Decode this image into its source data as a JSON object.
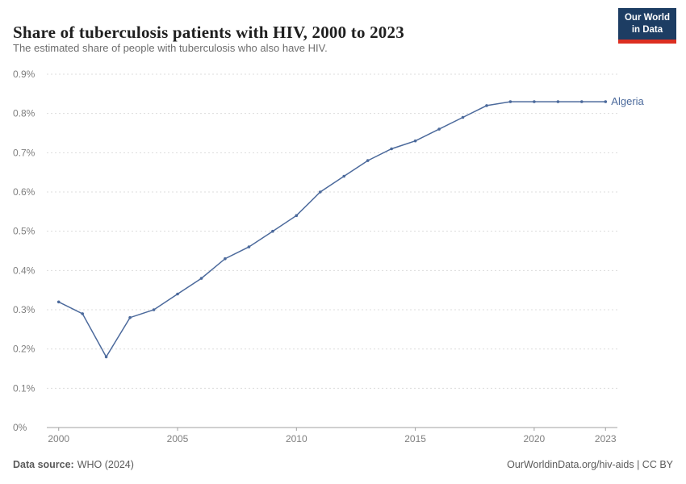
{
  "header": {
    "title": "Share of tuberculosis patients with HIV, 2000 to 2023",
    "subtitle": "The estimated share of people with tuberculosis who also have HIV.",
    "logo": {
      "line1": "Our World",
      "line2": "in Data"
    }
  },
  "chart_data": {
    "type": "line",
    "title": "Share of tuberculosis patients with HIV, 2000 to 2023",
    "xlabel": "",
    "ylabel": "",
    "xlim": [
      1999.5,
      2023.5
    ],
    "ylim": [
      0,
      0.9
    ],
    "grid": "horizontal-dashed",
    "legend_position": "end-of-line-label",
    "x_ticks": [
      2000,
      2005,
      2010,
      2015,
      2020,
      2023
    ],
    "y_ticks": [
      {
        "value": 0,
        "label": "0%"
      },
      {
        "value": 0.1,
        "label": "0.1%"
      },
      {
        "value": 0.2,
        "label": "0.2%"
      },
      {
        "value": 0.3,
        "label": "0.3%"
      },
      {
        "value": 0.4,
        "label": "0.4%"
      },
      {
        "value": 0.5,
        "label": "0.5%"
      },
      {
        "value": 0.6,
        "label": "0.6%"
      },
      {
        "value": 0.7,
        "label": "0.7%"
      },
      {
        "value": 0.8,
        "label": "0.8%"
      },
      {
        "value": 0.9,
        "label": "0.9%"
      }
    ],
    "series": [
      {
        "name": "Algeria",
        "color": "#4c6a9c",
        "x": [
          2000,
          2001,
          2002,
          2003,
          2004,
          2005,
          2006,
          2007,
          2008,
          2009,
          2010,
          2011,
          2012,
          2013,
          2014,
          2015,
          2016,
          2017,
          2018,
          2019,
          2020,
          2021,
          2022,
          2023
        ],
        "values": [
          0.32,
          0.29,
          0.18,
          0.28,
          0.3,
          0.34,
          0.38,
          0.43,
          0.46,
          0.5,
          0.54,
          0.6,
          0.64,
          0.68,
          0.71,
          0.73,
          0.76,
          0.79,
          0.82,
          0.83,
          0.83,
          0.83,
          0.83,
          0.83
        ]
      }
    ]
  },
  "footer": {
    "source_label": "Data source:",
    "source_value": "WHO (2024)",
    "link": "OurWorldinData.org/hiv-aids | CC BY"
  },
  "colors": {
    "line": "#4c6a9c",
    "gridline": "#dcdcdc",
    "axis": "#a1a1a1",
    "logo_bg": "#1d3d63",
    "logo_stripe": "#dc2e21"
  }
}
